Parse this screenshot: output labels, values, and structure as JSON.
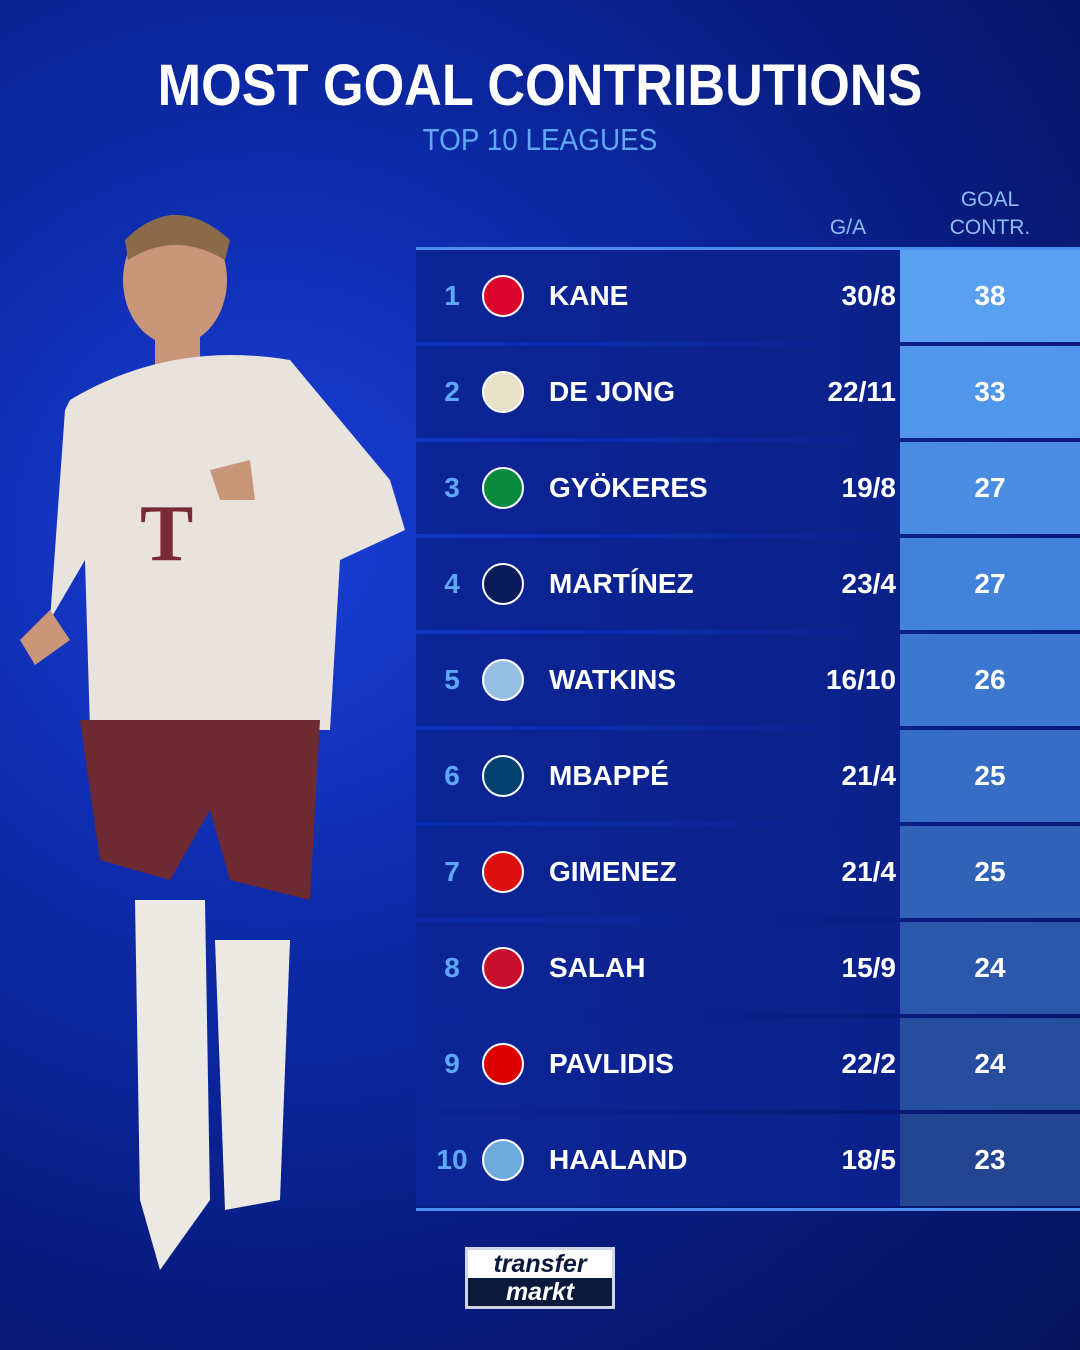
{
  "title": "MOST GOAL CONTRIBUTIONS",
  "subtitle": "TOP 10 LEAGUES",
  "columns": {
    "ga": "G/A",
    "gc_line1": "GOAL",
    "gc_line2": "CONTR."
  },
  "rows": [
    {
      "rank": "1",
      "club_icon": "bayern-munich-crest",
      "name": "KANE",
      "ga": "30/8",
      "gc": "38",
      "gc_color": "#5aa0f0"
    },
    {
      "rank": "2",
      "club_icon": "psv-crest",
      "name": "DE JONG",
      "ga": "22/11",
      "gc": "33",
      "gc_color": "#5096ea"
    },
    {
      "rank": "3",
      "club_icon": "sporting-cp-crest",
      "name": "GYÖKERES",
      "ga": "19/8",
      "gc": "27",
      "gc_color": "#4a8ce2"
    },
    {
      "rank": "4",
      "club_icon": "inter-crest",
      "name": "MARTÍNEZ",
      "ga": "23/4",
      "gc": "27",
      "gc_color": "#4382da"
    },
    {
      "rank": "5",
      "club_icon": "aston-villa-crest",
      "name": "WATKINS",
      "ga": "16/10",
      "gc": "26",
      "gc_color": "#3d78d0"
    },
    {
      "rank": "6",
      "club_icon": "psg-crest",
      "name": "MBAPPÉ",
      "ga": "21/4",
      "gc": "25",
      "gc_color": "#366dc4"
    },
    {
      "rank": "7",
      "club_icon": "feyenoord-crest",
      "name": "GIMENEZ",
      "ga": "21/4",
      "gc": "25",
      "gc_color": "#3062b8"
    },
    {
      "rank": "8",
      "club_icon": "liverpool-crest",
      "name": "SALAH",
      "ga": "15/9",
      "gc": "24",
      "gc_color": "#2b58aa"
    },
    {
      "rank": "9",
      "club_icon": "az-alkmaar-crest",
      "name": "PAVLIDIS",
      "ga": "22/2",
      "gc": "24",
      "gc_color": "#274e9e"
    },
    {
      "rank": "10",
      "club_icon": "manchester-city-crest",
      "name": "HAALAND",
      "ga": "18/5",
      "gc": "23",
      "gc_color": "#234592"
    }
  ],
  "logo": {
    "line1": "transfer",
    "line2": "markt"
  },
  "club_colors": {
    "bayern-munich-crest": "#dc052d",
    "psv-crest": "#e8e0c8",
    "sporting-cp-crest": "#0a8a3c",
    "inter-crest": "#0a1a5a",
    "aston-villa-crest": "#95bfe5",
    "psg-crest": "#004170",
    "feyenoord-crest": "#d11",
    "liverpool-crest": "#c8102e",
    "az-alkmaar-crest": "#d00",
    "manchester-city-crest": "#6cabdd"
  }
}
